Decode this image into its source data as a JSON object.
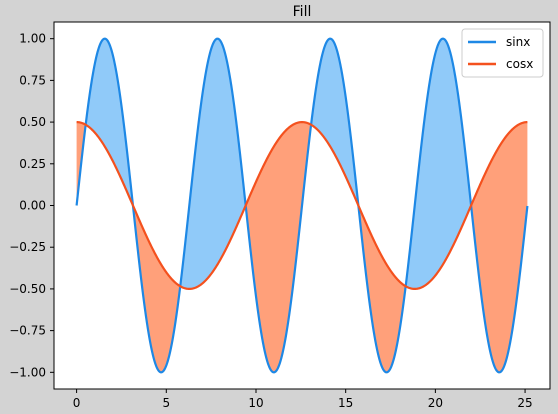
{
  "chart_data": {
    "type": "line",
    "title": "Fill",
    "xlabel": "",
    "ylabel": "",
    "xlim": [
      -1.26,
      26.39
    ],
    "ylim": [
      -1.1,
      1.1
    ],
    "xticks": [
      0,
      5,
      10,
      15,
      20,
      25
    ],
    "xtick_labels": [
      "0",
      "5",
      "10",
      "15",
      "20",
      "25"
    ],
    "yticks": [
      -1.0,
      -0.75,
      -0.5,
      -0.25,
      0.0,
      0.25,
      0.5,
      0.75,
      1.0
    ],
    "ytick_labels": [
      "−1.00",
      "−0.75",
      "−0.50",
      "−0.25",
      "0.00",
      "0.25",
      "0.50",
      "0.75",
      "1.00"
    ],
    "x_range": [
      0,
      25.13
    ],
    "grid": false,
    "legend_position": "upper right",
    "series": [
      {
        "name": "sinx",
        "function": "sin(x)",
        "color": "#1e88e5"
      },
      {
        "name": "cosx",
        "function": "0.5*cos(x/2)",
        "color": "#f4511e"
      }
    ],
    "fill_between": [
      {
        "where": "sinx > cosx",
        "color": "#90caf9"
      },
      {
        "where": "sinx < cosx",
        "color": "#ffa07a"
      }
    ]
  }
}
